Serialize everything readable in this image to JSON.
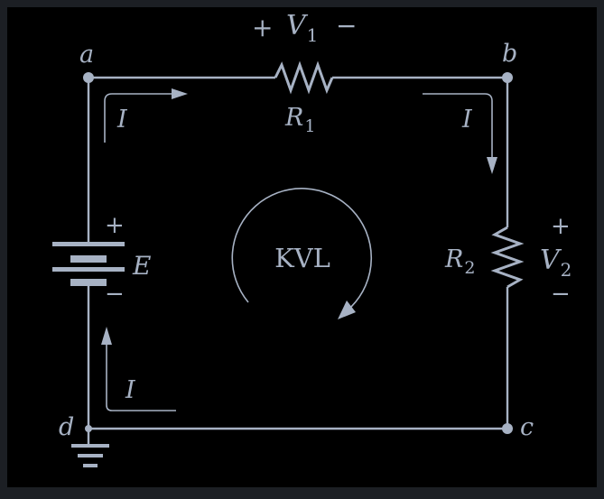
{
  "colors": {
    "frame": "#1c1f24",
    "panel": "#000000",
    "ink": "#a7b2c4"
  },
  "nodes": {
    "a": "a",
    "b": "b",
    "c": "c",
    "d": "d"
  },
  "resistor1": {
    "label": "R",
    "sub": "1"
  },
  "resistor2": {
    "label": "R",
    "sub": "2"
  },
  "v1": {
    "plus": "+",
    "label": "V",
    "sub": "1",
    "minus": "−"
  },
  "v2": {
    "plus": "+",
    "label": "V",
    "sub": "2",
    "minus": "−"
  },
  "source": {
    "label": "E",
    "plus": "+",
    "minus": "−"
  },
  "current": {
    "label": "I"
  },
  "loop": {
    "label": "KVL"
  }
}
